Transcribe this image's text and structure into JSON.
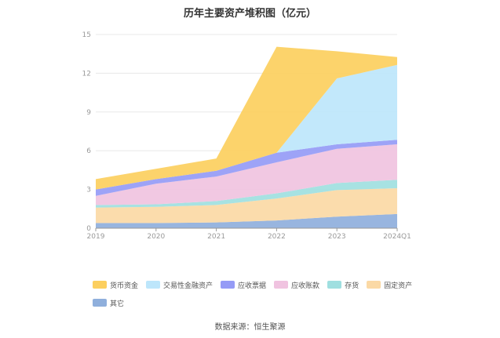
{
  "chart_data": {
    "type": "area",
    "stacked": true,
    "title": "历年主要资产堆积图（亿元）",
    "categories": [
      "2019",
      "2020",
      "2021",
      "2022",
      "2023",
      "2024Q1"
    ],
    "ylim": [
      0,
      15
    ],
    "yticks": [
      "0",
      "3",
      "6",
      "9",
      "12",
      "15"
    ],
    "grid": true,
    "legend_position": "bottom",
    "series": [
      {
        "name": "其它",
        "color": "#8fafdc",
        "values": [
          0.4,
          0.4,
          0.45,
          0.6,
          0.9,
          1.1
        ]
      },
      {
        "name": "固定资产",
        "color": "#fbd9a5",
        "values": [
          1.2,
          1.25,
          1.35,
          1.7,
          2.05,
          2.0
        ]
      },
      {
        "name": "存货",
        "color": "#9fdfe0",
        "values": [
          0.2,
          0.2,
          0.3,
          0.4,
          0.55,
          0.65
        ]
      },
      {
        "name": "应收账款",
        "color": "#f0c3e0",
        "values": [
          0.7,
          1.6,
          1.9,
          2.4,
          2.65,
          2.75
        ]
      },
      {
        "name": "应收票据",
        "color": "#959bf6",
        "values": [
          0.5,
          0.35,
          0.45,
          0.75,
          0.35,
          0.35
        ]
      },
      {
        "name": "交易性金融资产",
        "color": "#bde6fb",
        "values": [
          0,
          0,
          0,
          0,
          5.1,
          5.8
        ]
      },
      {
        "name": "货币资金",
        "color": "#fccf5e",
        "values": [
          0.8,
          0.8,
          0.95,
          8.2,
          2.1,
          0.6
        ]
      }
    ]
  },
  "source": "数据来源：恒生聚源"
}
